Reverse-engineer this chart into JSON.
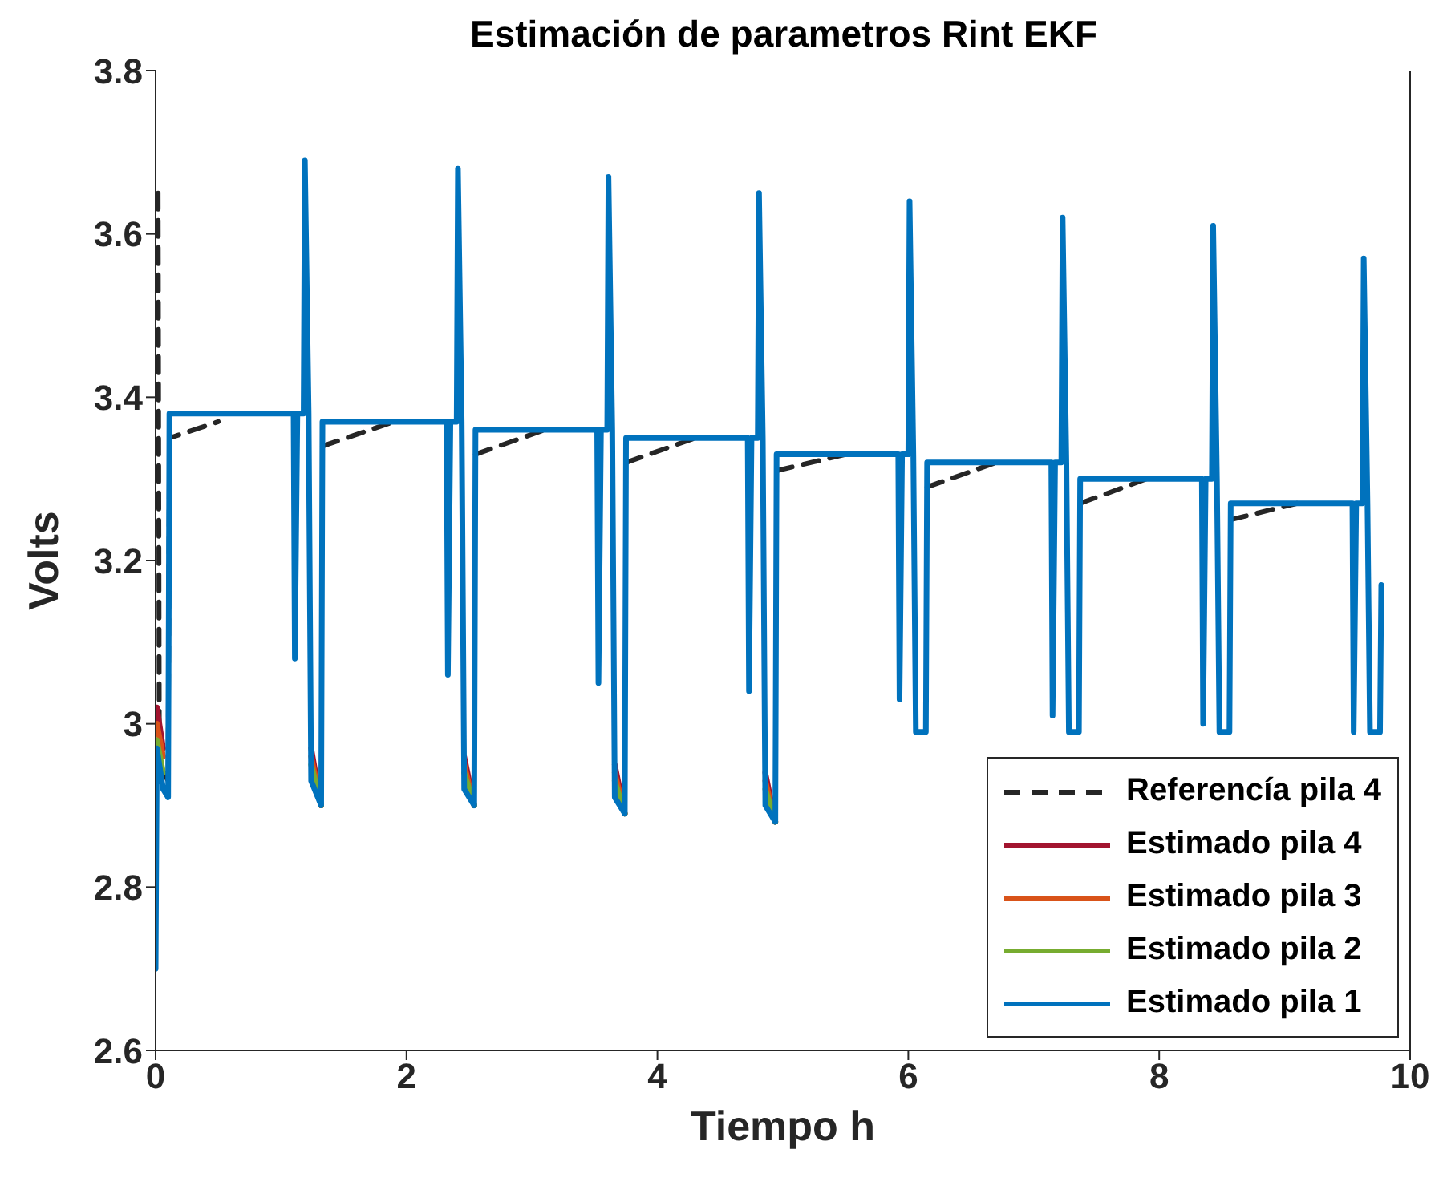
{
  "chart_data": {
    "type": "line",
    "title": "Estimación de parametros Rint EKF",
    "xlabel": "Tiempo h",
    "ylabel": "Volts",
    "xlim": [
      0,
      10
    ],
    "xticks": [
      0,
      2,
      4,
      6,
      8,
      10
    ],
    "ylim": [
      2.6,
      3.8
    ],
    "yticks": [
      2.6,
      2.8,
      3,
      3.2,
      3.4,
      3.6,
      3.8
    ],
    "grid": false,
    "legend": "bottom right",
    "marker": "none",
    "x": [
      0,
      0.01,
      0.06,
      0.1,
      0.11,
      1.1,
      1.11,
      1.13,
      1.18,
      1.19,
      1.22,
      1.24,
      1.32,
      1.33,
      2.32,
      2.33,
      2.35,
      2.4,
      2.41,
      2.44,
      2.46,
      2.54,
      2.55,
      3.52,
      3.53,
      3.55,
      3.6,
      3.61,
      3.64,
      3.66,
      3.74,
      3.75,
      4.72,
      4.73,
      4.75,
      4.8,
      4.81,
      4.84,
      4.86,
      4.94,
      4.95,
      5.92,
      5.93,
      5.95,
      6.0,
      6.01,
      6.04,
      6.06,
      6.14,
      6.15,
      7.14,
      7.15,
      7.17,
      7.22,
      7.23,
      7.26,
      7.28,
      7.36,
      7.37,
      8.34,
      8.35,
      8.37,
      8.42,
      8.43,
      8.46,
      8.48,
      8.56,
      8.57,
      9.54,
      9.55,
      9.57,
      9.62,
      9.63,
      9.66,
      9.68,
      9.76,
      9.77
    ],
    "series": [
      {
        "name": "Referencía pila 4",
        "color": "#262626",
        "line_style": "dashed",
        "x": [
          0.02,
          0.03,
          0.1,
          0.11,
          0.5,
          1.1,
          1.11,
          1.13,
          1.18,
          1.19,
          1.22,
          1.24,
          1.32,
          1.33,
          1.9,
          2.32,
          2.33,
          2.35,
          2.4,
          2.41,
          2.44,
          2.46,
          2.54,
          2.55,
          3.1,
          3.52,
          3.53,
          3.55,
          3.6,
          3.61,
          3.64,
          3.66,
          3.74,
          3.75,
          4.3,
          4.72,
          4.73,
          4.75,
          4.8,
          4.81,
          4.84,
          4.86,
          4.94,
          4.95,
          5.5,
          5.92,
          5.93,
          5.95,
          6.0,
          6.01,
          6.04,
          6.06,
          6.14,
          6.15,
          6.7,
          7.14,
          7.15,
          7.17,
          7.22,
          7.23,
          7.26,
          7.28,
          7.36,
          7.37,
          7.9,
          8.34,
          8.35,
          8.37,
          8.42,
          8.43,
          8.46,
          8.48,
          8.56,
          8.57,
          9.1
        ],
        "values": [
          3.65,
          2.95,
          2.93,
          3.35,
          3.37,
          null,
          null,
          null,
          null,
          null,
          null,
          null,
          null,
          3.34,
          3.37,
          null,
          null,
          null,
          null,
          null,
          null,
          null,
          null,
          3.33,
          3.36,
          null,
          null,
          null,
          null,
          null,
          null,
          null,
          null,
          3.32,
          3.35,
          null,
          null,
          null,
          null,
          null,
          null,
          null,
          null,
          3.31,
          3.33,
          null,
          null,
          null,
          null,
          null,
          null,
          null,
          null,
          3.29,
          3.32,
          null,
          null,
          null,
          null,
          null,
          null,
          null,
          null,
          3.27,
          3.3,
          null,
          null,
          null,
          null,
          null,
          null,
          null,
          null,
          3.25,
          3.27
        ]
      },
      {
        "name": "Estimado pila 4",
        "color": "#a2142f",
        "line_style": "solid",
        "values": [
          null,
          3.02,
          2.97,
          null,
          null,
          null,
          null,
          null,
          null,
          null,
          null,
          2.97,
          2.9,
          null,
          null,
          null,
          null,
          null,
          null,
          null,
          2.96,
          2.9,
          null,
          null,
          null,
          null,
          null,
          null,
          null,
          2.95,
          2.89,
          null,
          null,
          null,
          null,
          null,
          null,
          null,
          2.94,
          2.88,
          null,
          null,
          null,
          null,
          null,
          null,
          null,
          null,
          null,
          null,
          null,
          null,
          null,
          null,
          null,
          null,
          null,
          null,
          null,
          null,
          null,
          null,
          null,
          null,
          null,
          null,
          null,
          null,
          null,
          null,
          null,
          null,
          null,
          null,
          null,
          null,
          null
        ]
      },
      {
        "name": "Estimado pila 3",
        "color": "#d95319",
        "line_style": "solid",
        "values": [
          null,
          3.0,
          2.96,
          null,
          null,
          null,
          null,
          null,
          null,
          null,
          null,
          2.96,
          2.9,
          null,
          null,
          null,
          null,
          null,
          null,
          null,
          2.95,
          2.9,
          null,
          null,
          null,
          null,
          null,
          null,
          null,
          2.94,
          2.89,
          null,
          null,
          null,
          null,
          null,
          null,
          null,
          2.93,
          2.88,
          null,
          null,
          null,
          null,
          null,
          null,
          null,
          null,
          null,
          null,
          null,
          null,
          null,
          null,
          null,
          null,
          null,
          null,
          null,
          null,
          null,
          null,
          null,
          null,
          null,
          null,
          null,
          null,
          null,
          null,
          null,
          null,
          null,
          null,
          null,
          null,
          null
        ]
      },
      {
        "name": "Estimado pila 2",
        "color": "#77ac30",
        "line_style": "solid",
        "values": [
          null,
          2.98,
          2.94,
          null,
          null,
          null,
          null,
          null,
          null,
          null,
          null,
          2.95,
          2.9,
          null,
          null,
          null,
          null,
          null,
          null,
          null,
          2.94,
          2.9,
          null,
          null,
          null,
          null,
          null,
          null,
          null,
          2.93,
          2.89,
          null,
          null,
          null,
          null,
          null,
          null,
          null,
          2.92,
          2.88,
          null,
          null,
          null,
          null,
          null,
          null,
          null,
          null,
          null,
          null,
          null,
          null,
          null,
          null,
          null,
          null,
          null,
          null,
          null,
          null,
          null,
          null,
          null,
          null,
          null,
          null,
          null,
          null,
          null,
          null,
          null,
          null,
          null,
          null,
          null,
          null,
          null
        ]
      },
      {
        "name": "Estimado pila 1",
        "color": "#0072bd",
        "line_style": "solid",
        "values": [
          2.7,
          2.97,
          2.92,
          2.91,
          3.38,
          3.38,
          3.08,
          3.38,
          3.38,
          3.69,
          3.38,
          2.93,
          2.9,
          3.37,
          3.37,
          3.06,
          3.37,
          3.37,
          3.68,
          3.37,
          2.92,
          2.9,
          3.36,
          3.36,
          3.05,
          3.36,
          3.36,
          3.67,
          3.36,
          2.91,
          2.89,
          3.35,
          3.35,
          3.04,
          3.35,
          3.35,
          3.65,
          3.35,
          2.9,
          2.88,
          3.33,
          3.33,
          3.03,
          3.33,
          3.33,
          3.64,
          3.33,
          2.99,
          2.99,
          3.32,
          3.32,
          3.01,
          3.32,
          3.32,
          3.62,
          3.32,
          2.99,
          2.99,
          3.3,
          3.3,
          3.0,
          3.3,
          3.3,
          3.61,
          3.3,
          2.99,
          2.99,
          3.27,
          3.27,
          2.99,
          3.27,
          3.27,
          3.57,
          3.27,
          2.99,
          2.99,
          3.17
        ]
      }
    ]
  }
}
